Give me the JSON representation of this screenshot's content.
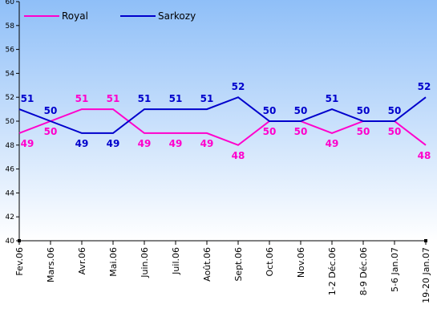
{
  "chart_data": {
    "type": "line",
    "categories": [
      "Fev.06",
      "Mars.06",
      "Avr.06",
      "Mai.06",
      "Juin.06",
      "Juil.06",
      "Août.06",
      "Sept.06",
      "Oct.06",
      "Nov.06",
      "1-2 Déc.06",
      "8-9 Déc.06",
      "5-6 Jan.07",
      "19-20 Jan.07"
    ],
    "series": [
      {
        "name": "Royal",
        "color": "#ff00cc",
        "values": [
          49,
          50,
          51,
          51,
          49,
          49,
          49,
          48,
          50,
          50,
          49,
          50,
          50,
          48
        ]
      },
      {
        "name": "Sarkozy",
        "color": "#0000cc",
        "values": [
          51,
          50,
          49,
          49,
          51,
          51,
          51,
          52,
          50,
          50,
          51,
          50,
          50,
          52
        ]
      }
    ],
    "yticks": [
      "40",
      "42",
      "44",
      "46",
      "48",
      "50",
      "52",
      "54",
      "56",
      "58",
      "60"
    ],
    "ylim": [
      40,
      60
    ],
    "grid": false,
    "legend": "top-left",
    "title": "",
    "xlabel": "",
    "ylabel": ""
  }
}
